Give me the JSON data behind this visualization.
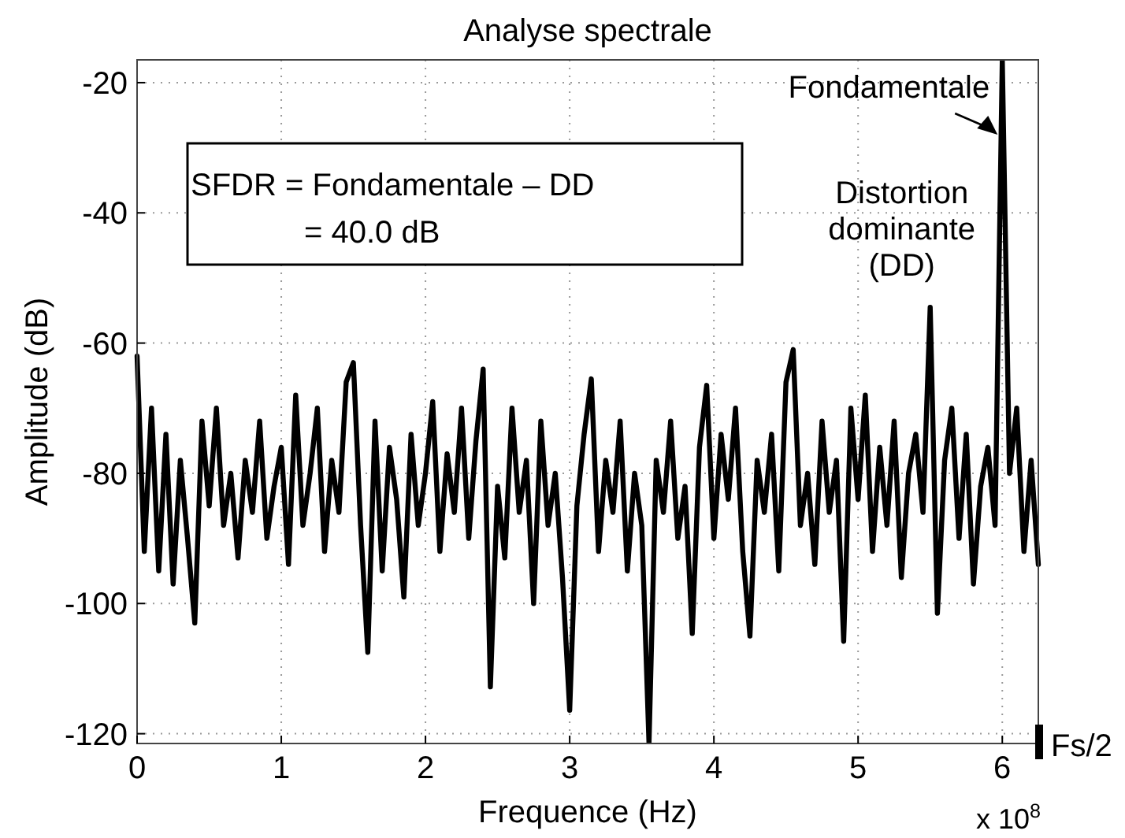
{
  "chart_data": {
    "type": "line",
    "title": "Analyse spectrale",
    "xlabel": "Frequence (Hz)",
    "ylabel": "Amplitude (dB)",
    "xlim": [
      0,
      6.25
    ],
    "ylim": [
      -121.5,
      -16.5
    ],
    "xticks": [
      0,
      1,
      2,
      3,
      4,
      5,
      6
    ],
    "yticks": [
      -120,
      -100,
      -80,
      -60,
      -40,
      -20
    ],
    "grid": true,
    "marker": "none",
    "line_style": "solid",
    "series": [
      {
        "color": "#000000",
        "x": [
          0,
          0.05,
          0.1,
          0.15,
          0.2,
          0.25,
          0.3,
          0.35,
          0.4,
          0.45,
          0.5,
          0.55,
          0.6,
          0.65,
          0.7,
          0.75,
          0.8,
          0.85,
          0.9,
          0.95,
          1,
          1.05,
          1.1,
          1.15,
          1.2,
          1.25,
          1.3,
          1.35,
          1.4,
          1.45,
          1.5,
          1.55,
          1.6,
          1.65,
          1.7,
          1.75,
          1.8,
          1.85,
          1.9,
          1.95,
          2,
          2.05,
          2.1,
          2.15,
          2.2,
          2.25,
          2.3,
          2.35,
          2.4,
          2.45,
          2.5,
          2.55,
          2.6,
          2.65,
          2.7,
          2.75,
          2.8,
          2.85,
          2.9,
          2.95,
          3,
          3.05,
          3.1,
          3.15,
          3.2,
          3.25,
          3.3,
          3.35,
          3.4,
          3.45,
          3.5,
          3.55,
          3.6,
          3.65,
          3.7,
          3.75,
          3.8,
          3.85,
          3.9,
          3.95,
          4,
          4.05,
          4.1,
          4.15,
          4.2,
          4.25,
          4.3,
          4.35,
          4.4,
          4.45,
          4.5,
          4.55,
          4.6,
          4.65,
          4.7,
          4.75,
          4.8,
          4.85,
          4.9,
          4.95,
          5,
          5.05,
          5.1,
          5.15,
          5.2,
          5.25,
          5.3,
          5.35,
          5.4,
          5.45,
          5.5,
          5.55,
          5.6,
          5.65,
          5.7,
          5.75,
          5.8,
          5.85,
          5.9,
          5.95,
          6,
          6.05,
          6.1,
          6.15,
          6.2,
          6.25
        ],
        "values": [
          -62,
          -92,
          -70,
          -95,
          -74,
          -97,
          -78,
          -90,
          -103,
          -72,
          -85,
          -70,
          -88,
          -80,
          -93,
          -78,
          -86,
          -72,
          -90,
          -82,
          -76,
          -94,
          -68,
          -88,
          -80,
          -70,
          -92,
          -78,
          -86,
          -66,
          -63,
          -88,
          -107.5,
          -72,
          -95,
          -76,
          -84,
          -99,
          -74,
          -88,
          -80,
          -69,
          -92,
          -77,
          -86,
          -70,
          -90,
          -75,
          -64,
          -112.8,
          -82,
          -93,
          -70,
          -86,
          -78,
          -100,
          -72,
          -88,
          -80,
          -96,
          -116.4,
          -85,
          -74,
          -65.5,
          -92,
          -78,
          -86,
          -72,
          -95,
          -80,
          -88,
          -121.5,
          -78,
          -86,
          -72,
          -90,
          -82,
          -104.6,
          -76,
          -66.5,
          -90,
          -74,
          -84,
          -70,
          -92,
          -105,
          -78,
          -86,
          -74,
          -95,
          -66,
          -61,
          -88,
          -80,
          -94,
          -72,
          -86,
          -78,
          -105.8,
          -70,
          -84,
          -68,
          -92,
          -76,
          -88,
          -72,
          -96,
          -80,
          -74,
          -86,
          -54.5,
          -101.5,
          -78,
          -70,
          -90,
          -74,
          -97,
          -82,
          -76,
          -88,
          -16.5,
          -80,
          -70,
          -92,
          -78,
          -94
        ]
      }
    ],
    "annotations": [
      {
        "text": "Fondamentale",
        "x": 6,
        "y": -28
      },
      {
        "text": "Distortion\ndominante\n(DD)",
        "x": 5.5,
        "y": -54.5
      },
      "SFDR = Fondamentale – DD\n= 40.0 dB",
      "x 10$^{8}$",
      "Fs/2"
    ]
  }
}
